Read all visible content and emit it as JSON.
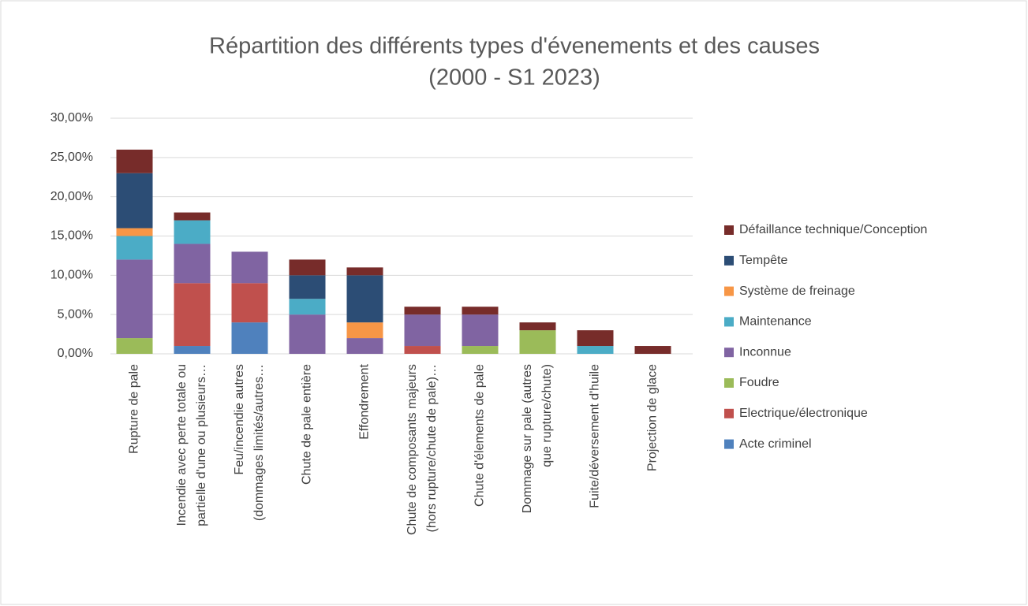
{
  "chart_data": {
    "type": "stacked_bar",
    "title": [
      "Répartition des différents types d'évenements et des causes",
      "(2000 - S1 2023)"
    ],
    "categories": [
      [
        "Rupture de pale"
      ],
      [
        "Incendie avec perte totale ou",
        "partielle d'une ou plusieurs…"
      ],
      [
        "Feu/incendie autres",
        "(dommages limités/autres…"
      ],
      [
        "Chute de pale entière"
      ],
      [
        "Effondrement"
      ],
      [
        "Chute de composants majeurs",
        "(hors rupture/chute de pale)…"
      ],
      [
        "Chute d'élements de pale"
      ],
      [
        "Dommage sur pale (autres",
        "que rupture/chute)"
      ],
      [
        "Fuite/déversement d'huile"
      ],
      [
        "Projection de glace"
      ]
    ],
    "series": [
      {
        "name": "Acte criminel",
        "color": "#4f81bd",
        "values": [
          0,
          1,
          4,
          0,
          0,
          0,
          0,
          0,
          0,
          0
        ]
      },
      {
        "name": "Electrique/électronique",
        "color": "#c0504d",
        "values": [
          0,
          8,
          5,
          0,
          0,
          1,
          0,
          0,
          0,
          0
        ]
      },
      {
        "name": "Foudre",
        "color": "#9bbb59",
        "values": [
          2,
          0,
          0,
          0,
          0,
          0,
          1,
          3,
          0,
          0
        ]
      },
      {
        "name": "Inconnue",
        "color": "#8064a2",
        "values": [
          10,
          5,
          4,
          5,
          2,
          4,
          4,
          0,
          0,
          0
        ]
      },
      {
        "name": "Maintenance",
        "color": "#4bacc6",
        "values": [
          3,
          3,
          0,
          2,
          0,
          0,
          0,
          0,
          1,
          0
        ]
      },
      {
        "name": "Système de freinage",
        "color": "#f79646",
        "values": [
          1,
          0,
          0,
          0,
          2,
          0,
          0,
          0,
          0,
          0
        ]
      },
      {
        "name": "Tempête",
        "color": "#2c4d75",
        "values": [
          7,
          0,
          0,
          3,
          6,
          0,
          0,
          0,
          0,
          0
        ]
      },
      {
        "name": "Défaillance technique/Conception",
        "color": "#772c2a",
        "values": [
          3,
          1,
          0,
          2,
          1,
          1,
          1,
          1,
          2,
          1
        ]
      }
    ],
    "ylim": [
      0,
      30
    ],
    "yticks": [
      {
        "value": 0,
        "label": "0,00%"
      },
      {
        "value": 5,
        "label": "5,00%"
      },
      {
        "value": 10,
        "label": "10,00%"
      },
      {
        "value": 15,
        "label": "15,00%"
      },
      {
        "value": 20,
        "label": "20,00%"
      },
      {
        "value": 25,
        "label": "25,00%"
      },
      {
        "value": 30,
        "label": "30,00%"
      }
    ],
    "grid": true,
    "legend": "right"
  }
}
